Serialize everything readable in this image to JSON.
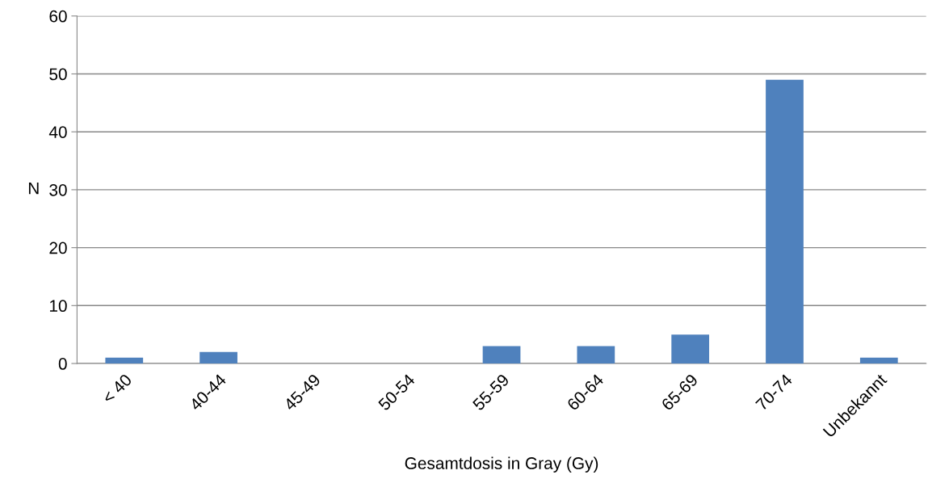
{
  "chart_data": {
    "type": "bar",
    "xlabel": "Gesamtdosis in Gray (Gy)",
    "ylabel": "N",
    "categories": [
      "< 40",
      "40-44",
      "45-49",
      "50-54",
      "55-59",
      "60-64",
      "65-69",
      "70-74",
      "Unbekannt"
    ],
    "values": [
      1,
      2,
      0,
      0,
      3,
      3,
      5,
      49,
      1
    ],
    "color": "#4f81bd",
    "ylim": [
      0,
      60
    ],
    "yticks": [
      0,
      10,
      20,
      30,
      40,
      50,
      60
    ],
    "grid": "y",
    "legend": false
  }
}
